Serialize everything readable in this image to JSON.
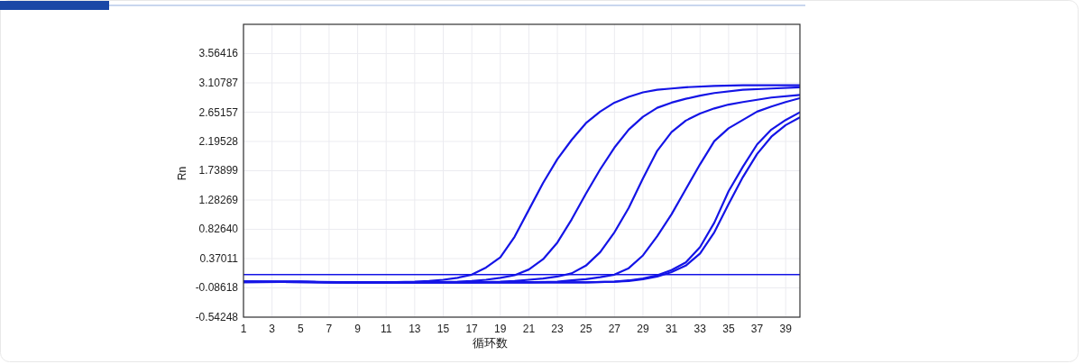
{
  "chart_data": {
    "type": "line",
    "xlabel": "循环数",
    "ylabel": "Rn",
    "xlim": [
      1,
      40
    ],
    "ylim": [
      -0.54248,
      4.02045
    ],
    "xticks": [
      1,
      3,
      5,
      7,
      9,
      11,
      13,
      15,
      17,
      19,
      21,
      23,
      25,
      27,
      29,
      31,
      33,
      35,
      37,
      39
    ],
    "yticks": [
      -0.54248,
      -0.08618,
      0.37011,
      {
        "value": 0.8264,
        "label": "0.82640"
      },
      1.28269,
      1.73899,
      2.19528,
      2.65157,
      3.10787,
      3.56416
    ],
    "grid": true,
    "line_style": "solid",
    "ref_lines": [
      {
        "axis": "y",
        "value": 0.12,
        "color": "#1414e6"
      }
    ],
    "series": [
      {
        "color": "#1414e6",
        "x": [
          1,
          3,
          5,
          7,
          9,
          11,
          13,
          14,
          15,
          16,
          17,
          18,
          19,
          20,
          21,
          22,
          23,
          24,
          25,
          26,
          27,
          28,
          29,
          30,
          31,
          32,
          34,
          36,
          40
        ],
        "values": [
          0.01,
          0.01,
          0.01,
          0.0,
          0.0,
          0.0,
          0.01,
          0.02,
          0.04,
          0.07,
          0.12,
          0.23,
          0.39,
          0.71,
          1.13,
          1.55,
          1.92,
          2.22,
          2.48,
          2.66,
          2.8,
          2.89,
          2.96,
          3.0,
          3.02,
          3.04,
          3.06,
          3.07,
          3.07
        ]
      },
      {
        "color": "#1414e6",
        "x": [
          1,
          5,
          9,
          13,
          16,
          17,
          18,
          19,
          20,
          21,
          22,
          23,
          24,
          25,
          26,
          27,
          28,
          29,
          30,
          31,
          32,
          33,
          34,
          36,
          38,
          40
        ],
        "values": [
          0.0,
          0.01,
          0.0,
          0.0,
          0.01,
          0.02,
          0.04,
          0.07,
          0.11,
          0.2,
          0.36,
          0.62,
          0.98,
          1.38,
          1.76,
          2.1,
          2.38,
          2.58,
          2.72,
          2.8,
          2.86,
          2.91,
          2.95,
          3.0,
          3.02,
          3.04
        ]
      },
      {
        "color": "#1414e6",
        "x": [
          1,
          9,
          17,
          19,
          20,
          21,
          22,
          23,
          24,
          25,
          26,
          27,
          28,
          29,
          30,
          31,
          32,
          33,
          34,
          35,
          36,
          38,
          40
        ],
        "values": [
          0.01,
          0.0,
          0.0,
          0.01,
          0.02,
          0.04,
          0.06,
          0.09,
          0.14,
          0.26,
          0.47,
          0.78,
          1.16,
          1.62,
          2.05,
          2.34,
          2.52,
          2.63,
          2.71,
          2.77,
          2.81,
          2.88,
          2.92
        ]
      },
      {
        "color": "#1414e6",
        "x": [
          1,
          9,
          21,
          23,
          24,
          25,
          26,
          27,
          28,
          29,
          30,
          31,
          32,
          33,
          34,
          35,
          36,
          37,
          38,
          39,
          40
        ],
        "values": [
          0.01,
          0.0,
          0.0,
          0.01,
          0.03,
          0.05,
          0.08,
          0.12,
          0.22,
          0.42,
          0.72,
          1.06,
          1.45,
          1.84,
          2.2,
          2.4,
          2.53,
          2.66,
          2.74,
          2.81,
          2.87
        ]
      },
      {
        "color": "#1414e6",
        "x": [
          1,
          9,
          25,
          27,
          28,
          29,
          30,
          31,
          32,
          33,
          34,
          35,
          36,
          37,
          38,
          39,
          40
        ],
        "values": [
          0.01,
          0.0,
          0.0,
          0.01,
          0.03,
          0.06,
          0.11,
          0.19,
          0.31,
          0.55,
          0.93,
          1.42,
          1.8,
          2.15,
          2.38,
          2.53,
          2.65
        ]
      },
      {
        "color": "#1414e6",
        "x": [
          1,
          9,
          25,
          27,
          28,
          29,
          30,
          31,
          32,
          33,
          34,
          35,
          36,
          37,
          38,
          39,
          40
        ],
        "values": [
          0.01,
          0.0,
          0.0,
          0.01,
          0.02,
          0.05,
          0.09,
          0.16,
          0.26,
          0.45,
          0.78,
          1.22,
          1.64,
          2.0,
          2.27,
          2.45,
          2.57
        ]
      }
    ]
  }
}
